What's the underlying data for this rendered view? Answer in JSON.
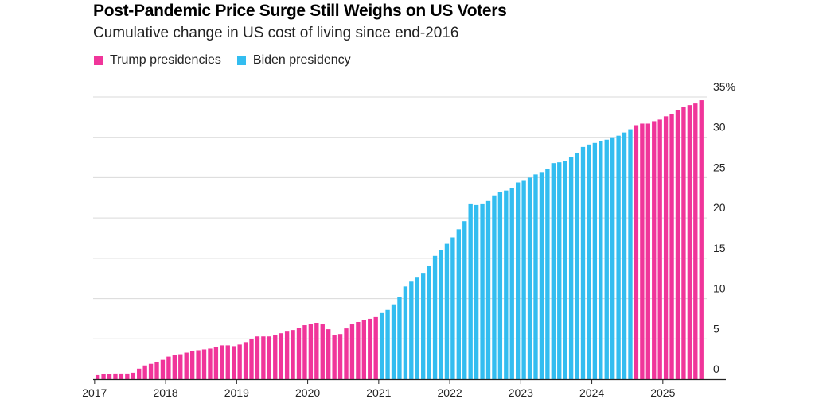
{
  "chart_data": {
    "type": "bar",
    "title": "Post-Pandemic Price Surge Still Weighs on US Voters",
    "subtitle": "Cumulative change in US cost of living since end-2016",
    "ylabel": "",
    "xlabel": "",
    "ylim": [
      0,
      35
    ],
    "y_ticks": [
      {
        "value": 0,
        "label": "0"
      },
      {
        "value": 5,
        "label": "5"
      },
      {
        "value": 10,
        "label": "10"
      },
      {
        "value": 15,
        "label": "15"
      },
      {
        "value": 20,
        "label": "20"
      },
      {
        "value": 25,
        "label": "25"
      },
      {
        "value": 30,
        "label": "30"
      },
      {
        "value": 35,
        "label": "35%"
      }
    ],
    "x_ticks": [
      "2017",
      "2018",
      "2019",
      "2020",
      "2021",
      "2022",
      "2023",
      "2024",
      "2025"
    ],
    "legend": [
      {
        "name": "Trump presidencies",
        "color": "#f0359a"
      },
      {
        "name": "Biden presidency",
        "color": "#33bdf0"
      }
    ],
    "series": [
      {
        "name": "Trump presidencies",
        "color": "#f0359a",
        "start_month": "2017-01",
        "values": [
          0.5,
          0.6,
          0.6,
          0.7,
          0.7,
          0.7,
          0.8,
          1.3,
          1.7,
          1.9,
          2.1,
          2.4,
          2.8,
          3.0,
          3.1,
          3.3,
          3.5,
          3.6,
          3.7,
          3.8,
          4.0,
          4.2,
          4.2,
          4.1,
          4.3,
          4.6,
          5.0,
          5.3,
          5.3,
          5.3,
          5.5,
          5.7,
          5.9,
          6.1,
          6.4,
          6.7,
          6.9,
          7.0,
          6.8,
          6.2,
          5.5,
          5.6,
          6.3,
          6.8,
          7.1,
          7.3,
          7.5,
          7.7
        ]
      },
      {
        "name": "Biden presidency",
        "color": "#33bdf0",
        "start_month": "2021-01",
        "values": [
          8.2,
          8.6,
          9.2,
          10.2,
          11.5,
          12.1,
          12.6,
          13.1,
          14.1,
          15.3,
          16.0,
          16.8,
          17.6,
          18.6,
          19.6,
          21.7,
          21.6,
          21.7,
          22.1,
          22.8,
          23.2,
          23.4,
          23.7,
          24.4,
          24.6,
          25.0,
          25.4,
          25.6,
          26.1,
          26.8,
          26.9,
          27.1,
          27.6,
          28.1,
          28.8,
          29.1,
          29.3,
          29.5,
          29.7,
          30.0,
          30.2,
          30.6,
          31.0
        ]
      },
      {
        "name": "Trump presidencies",
        "color": "#f0359a",
        "start_month": "2024-08",
        "values": [
          31.5,
          31.7,
          31.7,
          32.0,
          32.2,
          32.6,
          32.9,
          33.4,
          33.8,
          34.0,
          34.2,
          34.6
        ]
      }
    ]
  }
}
